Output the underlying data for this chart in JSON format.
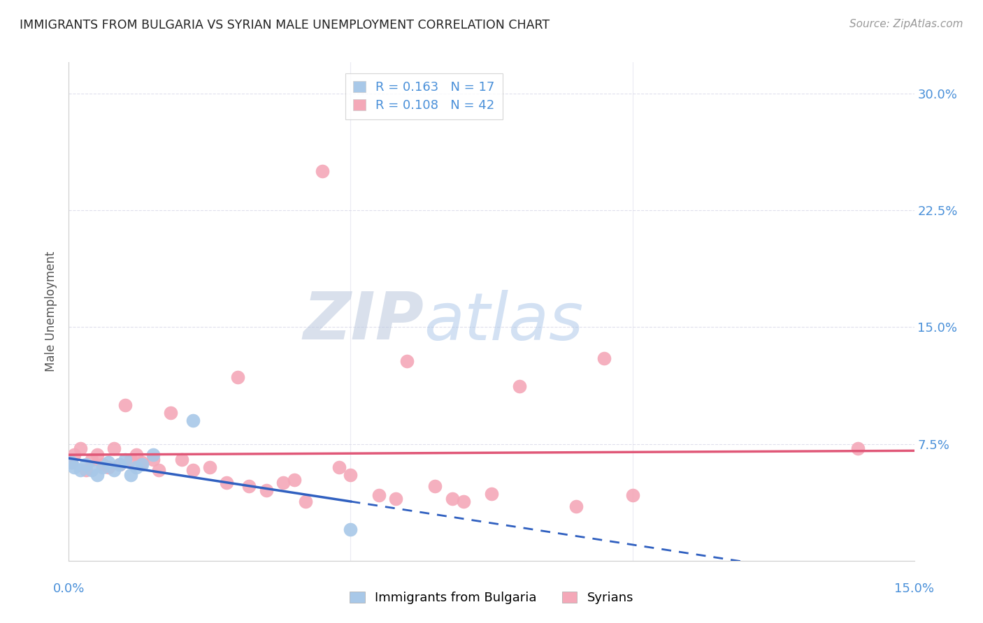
{
  "title": "IMMIGRANTS FROM BULGARIA VS SYRIAN MALE UNEMPLOYMENT CORRELATION CHART",
  "source": "Source: ZipAtlas.com",
  "ylabel": "Male Unemployment",
  "ytick_labels": [
    "7.5%",
    "15.0%",
    "22.5%",
    "30.0%"
  ],
  "ytick_values": [
    0.075,
    0.15,
    0.225,
    0.3
  ],
  "xlim": [
    0.0,
    0.15
  ],
  "ylim": [
    0.0,
    0.32
  ],
  "legend_line1": "R = 0.163   N = 17",
  "legend_line2": "R = 0.108   N = 42",
  "bulgaria_color": "#a8c8e8",
  "syria_color": "#f4a8b8",
  "trendline_bulgaria_color": "#3060c0",
  "trendline_syria_color": "#e05878",
  "watermark_zip": "ZIP",
  "watermark_atlas": "atlas",
  "background_color": "#ffffff",
  "grid_color": "#d8d8e8",
  "bulgaria_x": [
    0.0005,
    0.001,
    0.002,
    0.003,
    0.004,
    0.005,
    0.006,
    0.007,
    0.008,
    0.009,
    0.01,
    0.011,
    0.012,
    0.013,
    0.015,
    0.022,
    0.05
  ],
  "bulgaria_y": [
    0.063,
    0.06,
    0.058,
    0.062,
    0.058,
    0.055,
    0.06,
    0.063,
    0.058,
    0.062,
    0.065,
    0.055,
    0.06,
    0.062,
    0.068,
    0.09,
    0.02
  ],
  "syria_x": [
    0.0005,
    0.001,
    0.002,
    0.003,
    0.004,
    0.005,
    0.006,
    0.007,
    0.008,
    0.009,
    0.01,
    0.011,
    0.012,
    0.013,
    0.015,
    0.016,
    0.018,
    0.02,
    0.022,
    0.025,
    0.028,
    0.03,
    0.032,
    0.035,
    0.038,
    0.04,
    0.042,
    0.045,
    0.048,
    0.05,
    0.055,
    0.058,
    0.06,
    0.065,
    0.068,
    0.07,
    0.075,
    0.08,
    0.09,
    0.095,
    0.1,
    0.14
  ],
  "syria_y": [
    0.063,
    0.068,
    0.072,
    0.058,
    0.065,
    0.068,
    0.062,
    0.06,
    0.072,
    0.062,
    0.1,
    0.065,
    0.068,
    0.063,
    0.065,
    0.058,
    0.095,
    0.065,
    0.058,
    0.06,
    0.05,
    0.118,
    0.048,
    0.045,
    0.05,
    0.052,
    0.038,
    0.25,
    0.06,
    0.055,
    0.042,
    0.04,
    0.128,
    0.048,
    0.04,
    0.038,
    0.043,
    0.112,
    0.035,
    0.13,
    0.042,
    0.072
  ]
}
